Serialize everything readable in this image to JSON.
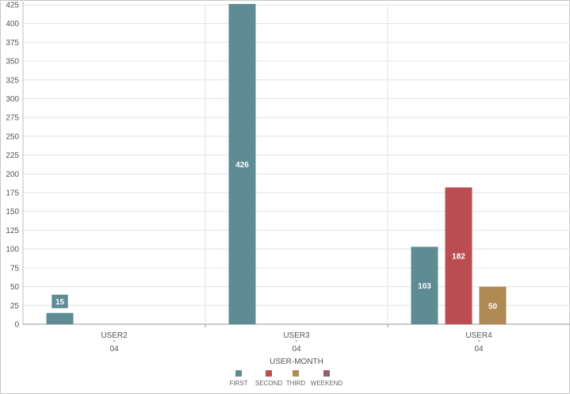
{
  "chart_data": {
    "type": "bar",
    "xlabel": "USER-MONTH",
    "ylabel": "",
    "ylim": [
      0,
      426
    ],
    "yticks": [
      0,
      25,
      50,
      75,
      100,
      125,
      150,
      175,
      200,
      225,
      250,
      275,
      300,
      325,
      350,
      375,
      400,
      425
    ],
    "grid": true,
    "legend_position": "bottom",
    "categories": [
      {
        "name": "USER2",
        "separator": "-",
        "month": "04"
      },
      {
        "name": "USER3",
        "separator": "-",
        "month": "04"
      },
      {
        "name": "USER4",
        "separator": "-",
        "month": "04"
      }
    ],
    "series": [
      {
        "name": "FIRST",
        "color": "#5f8b95",
        "values": [
          15,
          426,
          103
        ]
      },
      {
        "name": "SECOND",
        "color": "#ba4d51",
        "values": [
          null,
          null,
          182
        ]
      },
      {
        "name": "THIRD",
        "color": "#af8a53",
        "values": [
          null,
          null,
          50
        ]
      },
      {
        "name": "WEEKEND",
        "color": "#955f71",
        "values": [
          null,
          null,
          null
        ]
      }
    ]
  }
}
